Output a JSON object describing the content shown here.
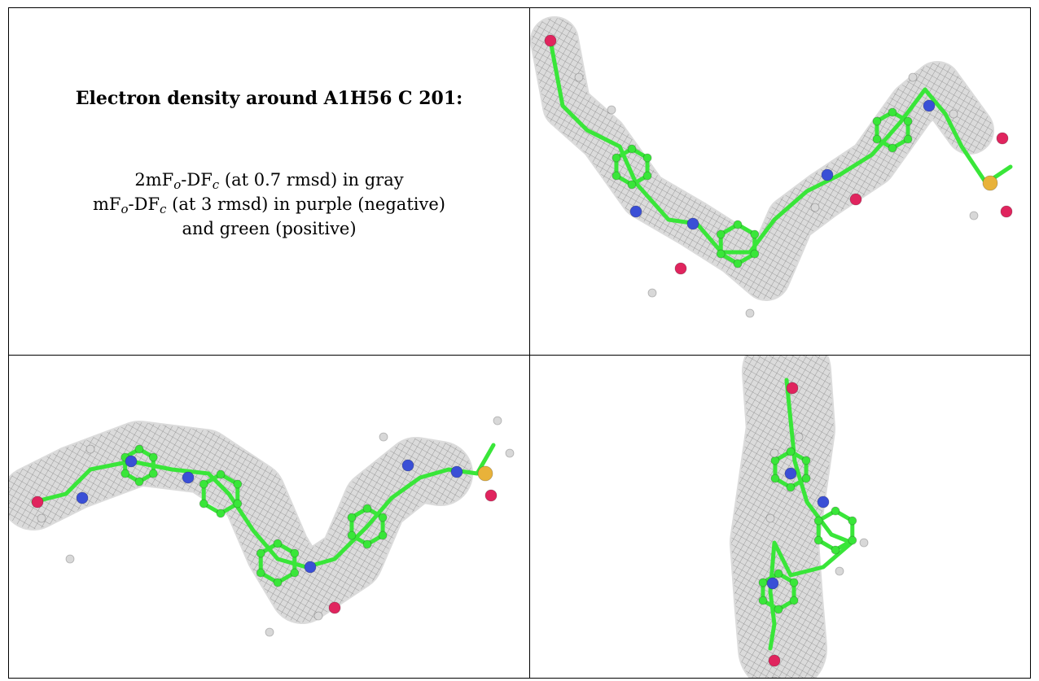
{
  "figure": {
    "title": "Electron density around A1H56 C 201:",
    "lines": [
      [
        "2mF",
        "o",
        "-DF",
        "c",
        " (at 0.7 rmsd) in gray"
      ],
      [
        "mF",
        "o",
        "-DF",
        "c",
        " (at 3 rmsd) in purple (negative)"
      ],
      [
        "and green (positive)",
        "",
        "",
        "",
        ""
      ]
    ]
  },
  "colors": {
    "mesh": "#8a8a8a",
    "carbon": "#39e639",
    "nitrogen": "#3a4fd6",
    "oxygen": "#e0245e",
    "sulfur": "#e8b23a",
    "hydrogen": "#d8d8d8"
  },
  "panels": [
    {
      "id": "view-top-right",
      "description_icon": "molecule-density-icon"
    },
    {
      "id": "view-bottom-left",
      "description_icon": "molecule-density-icon"
    },
    {
      "id": "view-bottom-right",
      "description_icon": "molecule-density-icon"
    }
  ]
}
